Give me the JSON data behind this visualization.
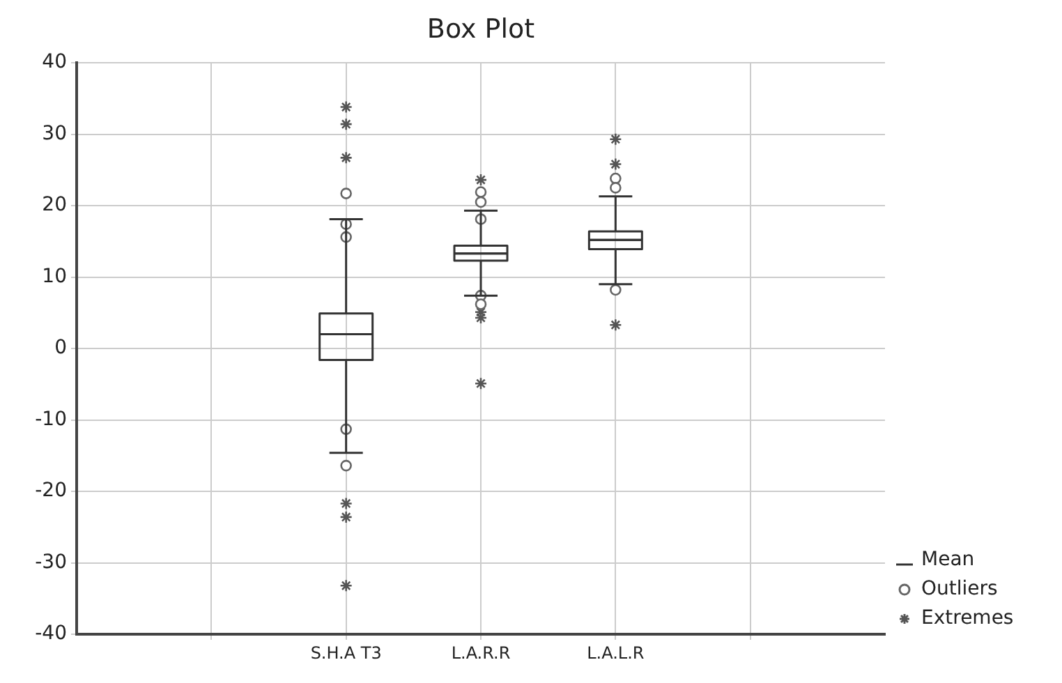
{
  "chart_data": {
    "type": "box",
    "title": "Box Plot",
    "categories": [
      null,
      "S.H.A T3",
      "L.A.R.R",
      "L.A.L.R",
      null
    ],
    "ylim": [
      -40,
      40
    ],
    "yticks": [
      -40,
      -30,
      -20,
      -10,
      0,
      10,
      20,
      30,
      40
    ],
    "grid": true,
    "legend": "bottom right",
    "series": [
      {
        "name": "Mean",
        "color": "#333333",
        "boxes": [
          null,
          {
            "low": -14.6,
            "q1": -1.6,
            "median": 2,
            "q3": 4.9,
            "high": 18.1,
            "mean": 2
          },
          {
            "low": 7.4,
            "q1": 12.3,
            "median": 13.3,
            "q3": 14.4,
            "high": 19.3,
            "mean": 13.3
          },
          {
            "low": 9,
            "q1": 13.9,
            "median": 15.2,
            "q3": 16.4,
            "high": 21.3,
            "mean": 15.2
          },
          null
        ]
      },
      {
        "type": "scatter",
        "name": "Outliers",
        "color": "#666666",
        "marker": "circle",
        "x": [
          "S.H.A T3",
          "S.H.A T3",
          "S.H.A T3",
          "S.H.A T3",
          "S.H.A T3",
          "L.A.R.R",
          "L.A.R.R",
          "L.A.R.R",
          "L.A.R.R",
          "L.A.R.R",
          "L.A.L.R",
          "L.A.L.R",
          "L.A.L.R"
        ],
        "values": [
          21.7,
          17.4,
          15.6,
          -11.3,
          -16.4,
          21.9,
          20.5,
          18.1,
          7.4,
          6.2,
          23.8,
          22.5,
          8.2
        ]
      },
      {
        "type": "scatter",
        "name": "Extremes",
        "color": "#555555",
        "marker": "cross",
        "x": [
          "S.H.A T3",
          "S.H.A T3",
          "S.H.A T3",
          "S.H.A T3",
          "S.H.A T3",
          "S.H.A T3",
          "L.A.R.R",
          "L.A.R.R",
          "L.A.R.R",
          "L.A.R.R",
          "L.A.L.R",
          "L.A.L.R",
          "L.A.L.R"
        ],
        "values": [
          33.8,
          31.4,
          26.7,
          -21.7,
          -23.6,
          -33.2,
          23.6,
          5.1,
          4.3,
          -4.9,
          29.3,
          25.8,
          3.3
        ]
      }
    ]
  }
}
